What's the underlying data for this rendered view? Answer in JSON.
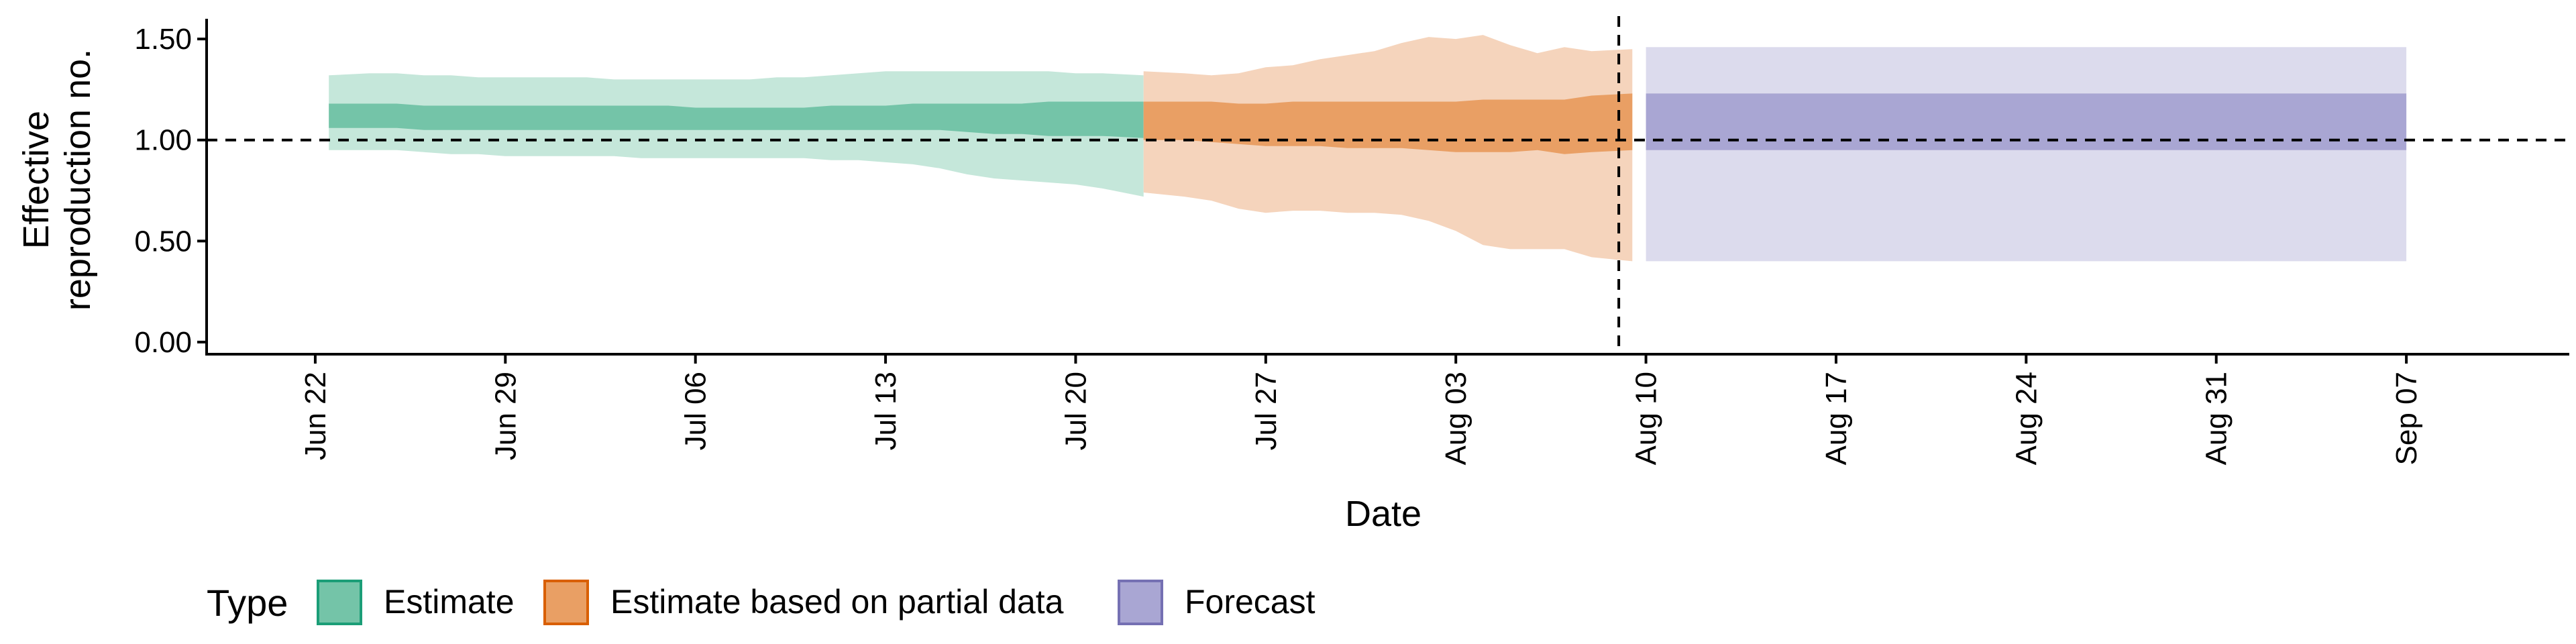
{
  "chart_data": {
    "type": "area",
    "title": "",
    "xlabel": "Date",
    "ylabel_lines": [
      "Effective",
      "reproduction no."
    ],
    "ylim": [
      0,
      1.6
    ],
    "y_ticks": [
      0.0,
      0.5,
      1.0,
      1.5
    ],
    "y_tick_labels": [
      "0.00",
      "0.50",
      "1.00",
      "1.50"
    ],
    "x_range": [
      "2022-06-18",
      "2022-09-13"
    ],
    "x_ticks": [
      "2022-06-22",
      "2022-06-29",
      "2022-07-06",
      "2022-07-13",
      "2022-07-20",
      "2022-07-27",
      "2022-08-03",
      "2022-08-10",
      "2022-08-17",
      "2022-08-24",
      "2022-08-31",
      "2022-09-07"
    ],
    "x_tick_labels": [
      "Jun 22",
      "Jun 29",
      "Jul 06",
      "Jul 13",
      "Jul 20",
      "Jul 27",
      "Aug 03",
      "Aug 10",
      "Aug 17",
      "Aug 24",
      "Aug 31",
      "Sep 07"
    ],
    "reference_hline": 1.0,
    "reference_vline": "2022-08-09",
    "grid": false,
    "legend": {
      "title": "Type",
      "position": "bottom-left",
      "items": [
        {
          "label": "Estimate",
          "fill": "#74c4a8",
          "stroke": "#1b9e77"
        },
        {
          "label": "Estimate based on partial data",
          "fill": "#e99f64",
          "stroke": "#d95f02"
        },
        {
          "label": "Forecast",
          "fill": "#a9a6d3",
          "stroke": "#7570b3"
        }
      ]
    },
    "series": [
      {
        "type_label": "Estimate",
        "inner_color": "#74c4a8",
        "outer_color": "#c5e7da",
        "x": [
          "2022-06-23",
          "2022-06-24",
          "2022-06-25",
          "2022-06-26",
          "2022-06-27",
          "2022-06-28",
          "2022-06-29",
          "2022-06-30",
          "2022-07-01",
          "2022-07-02",
          "2022-07-03",
          "2022-07-04",
          "2022-07-05",
          "2022-07-06",
          "2022-07-07",
          "2022-07-08",
          "2022-07-09",
          "2022-07-10",
          "2022-07-11",
          "2022-07-12",
          "2022-07-13",
          "2022-07-14",
          "2022-07-15",
          "2022-07-16",
          "2022-07-17",
          "2022-07-18",
          "2022-07-19",
          "2022-07-20",
          "2022-07-21",
          "2022-07-22"
        ],
        "outer_lower": [
          0.95,
          0.95,
          0.95,
          0.94,
          0.93,
          0.93,
          0.92,
          0.92,
          0.92,
          0.92,
          0.92,
          0.91,
          0.91,
          0.91,
          0.91,
          0.91,
          0.91,
          0.91,
          0.9,
          0.9,
          0.89,
          0.88,
          0.86,
          0.83,
          0.81,
          0.8,
          0.79,
          0.78,
          0.76,
          0.72
        ],
        "inner_lower": [
          1.06,
          1.06,
          1.06,
          1.05,
          1.05,
          1.05,
          1.05,
          1.05,
          1.05,
          1.05,
          1.05,
          1.05,
          1.05,
          1.05,
          1.05,
          1.05,
          1.05,
          1.05,
          1.05,
          1.05,
          1.05,
          1.05,
          1.05,
          1.04,
          1.03,
          1.03,
          1.02,
          1.02,
          1.02,
          1.01
        ],
        "inner_upper": [
          1.18,
          1.18,
          1.18,
          1.17,
          1.17,
          1.17,
          1.17,
          1.17,
          1.17,
          1.17,
          1.17,
          1.17,
          1.17,
          1.16,
          1.16,
          1.16,
          1.16,
          1.16,
          1.17,
          1.17,
          1.17,
          1.18,
          1.18,
          1.18,
          1.18,
          1.18,
          1.19,
          1.19,
          1.19,
          1.19
        ],
        "outer_upper": [
          1.32,
          1.33,
          1.33,
          1.32,
          1.32,
          1.31,
          1.31,
          1.31,
          1.31,
          1.31,
          1.3,
          1.3,
          1.3,
          1.3,
          1.3,
          1.3,
          1.31,
          1.31,
          1.32,
          1.33,
          1.34,
          1.34,
          1.34,
          1.34,
          1.34,
          1.34,
          1.34,
          1.33,
          1.33,
          1.32
        ]
      },
      {
        "type_label": "Estimate based on partial data",
        "inner_color": "#e99f64",
        "outer_color": "#f5d4bc",
        "x": [
          "2022-07-23",
          "2022-07-24",
          "2022-07-25",
          "2022-07-26",
          "2022-07-27",
          "2022-07-28",
          "2022-07-29",
          "2022-07-30",
          "2022-07-31",
          "2022-08-01",
          "2022-08-02",
          "2022-08-03",
          "2022-08-04",
          "2022-08-05",
          "2022-08-06",
          "2022-08-07",
          "2022-08-08",
          "2022-08-09"
        ],
        "outer_lower": [
          0.74,
          0.72,
          0.7,
          0.66,
          0.64,
          0.65,
          0.65,
          0.64,
          0.64,
          0.63,
          0.6,
          0.55,
          0.48,
          0.46,
          0.46,
          0.46,
          0.42,
          0.4
        ],
        "inner_lower": [
          1.0,
          1.0,
          0.99,
          0.98,
          0.97,
          0.97,
          0.97,
          0.96,
          0.96,
          0.96,
          0.95,
          0.94,
          0.94,
          0.94,
          0.95,
          0.93,
          0.94,
          0.95
        ],
        "inner_upper": [
          1.19,
          1.19,
          1.19,
          1.18,
          1.18,
          1.19,
          1.19,
          1.19,
          1.19,
          1.19,
          1.19,
          1.19,
          1.2,
          1.2,
          1.2,
          1.2,
          1.22,
          1.23
        ],
        "outer_upper": [
          1.34,
          1.33,
          1.32,
          1.33,
          1.36,
          1.37,
          1.4,
          1.42,
          1.44,
          1.48,
          1.51,
          1.5,
          1.52,
          1.47,
          1.43,
          1.46,
          1.44,
          1.45
        ]
      },
      {
        "type_label": "Forecast",
        "inner_color": "#a9a6d3",
        "outer_color": "#dcdbed",
        "x": [
          "2022-08-10",
          "2022-09-07"
        ],
        "outer_lower": [
          0.4,
          0.4
        ],
        "inner_lower": [
          0.95,
          0.95
        ],
        "inner_upper": [
          1.23,
          1.23
        ],
        "outer_upper": [
          1.46,
          1.46
        ]
      }
    ]
  }
}
